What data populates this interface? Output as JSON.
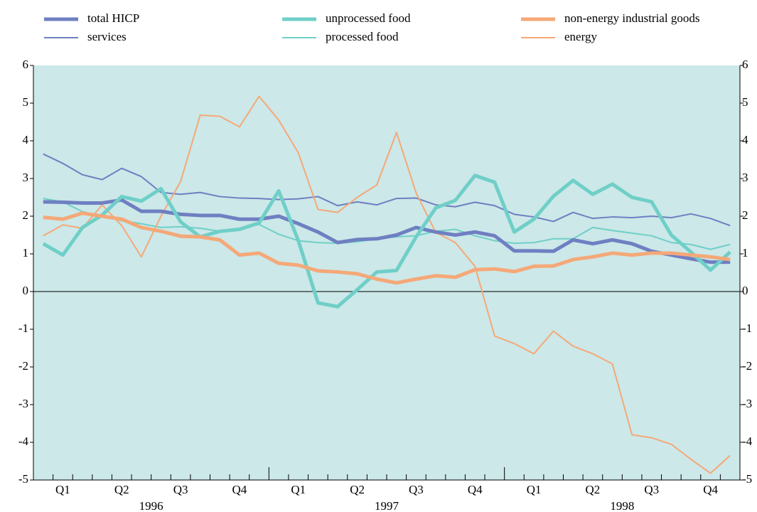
{
  "chart_data": {
    "type": "line",
    "categories": [
      null,
      "Q1",
      null,
      null,
      "Q2",
      null,
      null,
      "Q3",
      null,
      null,
      "Q4",
      null,
      null,
      "Q1",
      null,
      null,
      "Q2",
      null,
      null,
      "Q3",
      null,
      null,
      "Q4",
      null,
      null,
      "Q1",
      null,
      null,
      "Q2",
      null,
      null,
      "Q3",
      null,
      null,
      "Q4",
      null
    ],
    "years": [
      "1996",
      "1997",
      "1998"
    ],
    "ylim": [
      -5,
      6
    ],
    "yticks": [
      -5,
      -4,
      -3,
      -2,
      -1,
      0,
      1,
      2,
      3,
      4,
      5,
      6
    ],
    "series": [
      {
        "name": "total HICP",
        "color": "#6f7fc2",
        "width": 5,
        "values": [
          2.38,
          2.37,
          2.35,
          2.35,
          2.43,
          2.13,
          2.13,
          2.05,
          2.02,
          2.02,
          1.92,
          1.92,
          2.0,
          1.8,
          1.58,
          1.3,
          1.38,
          1.4,
          1.5,
          1.7,
          1.58,
          1.5,
          1.58,
          1.48,
          1.08,
          1.08,
          1.07,
          1.37,
          1.27,
          1.37,
          1.27,
          1.07,
          0.97,
          0.87,
          0.78,
          0.78
        ]
      },
      {
        "name": "services",
        "color": "#6f7fc2",
        "width": 2,
        "values": [
          3.65,
          3.4,
          3.1,
          2.97,
          3.27,
          3.05,
          2.63,
          2.58,
          2.63,
          2.52,
          2.48,
          2.47,
          2.44,
          2.46,
          2.52,
          2.28,
          2.38,
          2.3,
          2.47,
          2.48,
          2.3,
          2.25,
          2.37,
          2.28,
          2.05,
          1.98,
          1.86,
          2.1,
          1.94,
          1.98,
          1.96,
          2.0,
          1.96,
          2.06,
          1.94,
          1.75
        ]
      },
      {
        "name": "unprocessed food",
        "color": "#6fcfc8",
        "width": 5,
        "values": [
          1.27,
          0.97,
          1.7,
          2.03,
          2.52,
          2.4,
          2.73,
          1.85,
          1.45,
          1.6,
          1.65,
          1.82,
          2.67,
          1.35,
          -0.3,
          -0.4,
          0.05,
          0.52,
          0.56,
          1.45,
          2.22,
          2.42,
          3.08,
          2.9,
          1.58,
          1.92,
          2.53,
          2.95,
          2.58,
          2.85,
          2.5,
          2.38,
          1.5,
          1.05,
          0.57,
          1.05
        ]
      },
      {
        "name": "processed food",
        "color": "#6fcfc8",
        "width": 2,
        "values": [
          2.47,
          2.38,
          2.12,
          2.0,
          1.88,
          1.8,
          1.7,
          1.72,
          1.68,
          1.6,
          1.67,
          1.78,
          1.52,
          1.35,
          1.3,
          1.28,
          1.32,
          1.4,
          1.45,
          1.48,
          1.6,
          1.65,
          1.48,
          1.35,
          1.28,
          1.3,
          1.4,
          1.4,
          1.7,
          1.62,
          1.55,
          1.48,
          1.3,
          1.25,
          1.12,
          1.25
        ]
      },
      {
        "name": "non-energy industrial goods",
        "color": "#f5a878",
        "width": 5,
        "values": [
          1.97,
          1.92,
          2.08,
          2.0,
          1.92,
          1.7,
          1.6,
          1.47,
          1.45,
          1.37,
          0.97,
          1.02,
          0.75,
          0.7,
          0.55,
          0.52,
          0.47,
          0.33,
          0.23,
          0.33,
          0.42,
          0.38,
          0.58,
          0.6,
          0.53,
          0.67,
          0.68,
          0.85,
          0.92,
          1.02,
          0.97,
          1.02,
          1.02,
          0.97,
          0.92,
          0.85
        ]
      },
      {
        "name": "energy",
        "color": "#f5a878",
        "width": 2,
        "values": [
          1.48,
          1.77,
          1.68,
          2.3,
          1.75,
          0.92,
          2.0,
          2.92,
          4.68,
          4.65,
          4.37,
          5.18,
          4.55,
          3.68,
          2.18,
          2.1,
          2.5,
          2.83,
          4.22,
          2.62,
          1.57,
          1.3,
          0.67,
          -1.18,
          -1.38,
          -1.65,
          -1.05,
          -1.45,
          -1.65,
          -1.92,
          -3.8,
          -3.88,
          -4.05,
          -4.45,
          -4.82,
          -4.35
        ]
      }
    ]
  }
}
